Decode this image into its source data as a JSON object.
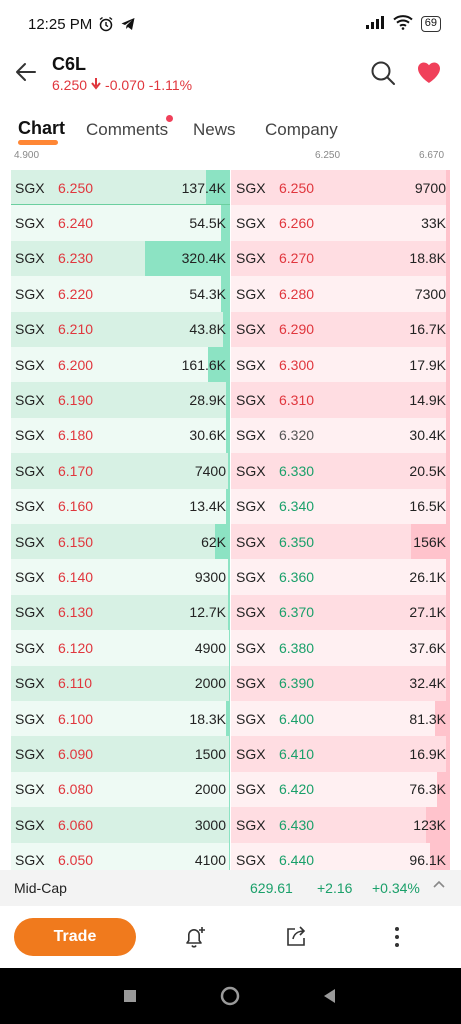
{
  "status": {
    "time": "12:25 PM",
    "battery": "69"
  },
  "header": {
    "ticker": "C6L",
    "price": "6.250",
    "change": "-0.070",
    "change_pct": "-1.11%"
  },
  "tabs": [
    {
      "label": "Chart",
      "active": true
    },
    {
      "label": "Comments",
      "badge": true
    },
    {
      "label": "News"
    },
    {
      "label": "Company"
    }
  ],
  "scale": {
    "low": "4.900",
    "mid": "6.250",
    "high": "6.670"
  },
  "order_book": {
    "bids": [
      {
        "ex": "SGX",
        "price": "6.250",
        "vol": "137.4K",
        "tone": "down",
        "fill": 0.11
      },
      {
        "ex": "SGX",
        "price": "6.240",
        "vol": "54.5K",
        "tone": "down",
        "fill": 0.04
      },
      {
        "ex": "SGX",
        "price": "6.230",
        "vol": "320.4K",
        "tone": "down",
        "fill": 0.39
      },
      {
        "ex": "SGX",
        "price": "6.220",
        "vol": "54.3K",
        "tone": "down",
        "fill": 0.04
      },
      {
        "ex": "SGX",
        "price": "6.210",
        "vol": "43.8K",
        "tone": "down",
        "fill": 0.03
      },
      {
        "ex": "SGX",
        "price": "6.200",
        "vol": "161.6K",
        "tone": "down",
        "fill": 0.1
      },
      {
        "ex": "SGX",
        "price": "6.190",
        "vol": "28.9K",
        "tone": "down",
        "fill": 0.02
      },
      {
        "ex": "SGX",
        "price": "6.180",
        "vol": "30.6K",
        "tone": "down",
        "fill": 0.02
      },
      {
        "ex": "SGX",
        "price": "6.170",
        "vol": "7400",
        "tone": "down",
        "fill": 0.01
      },
      {
        "ex": "SGX",
        "price": "6.160",
        "vol": "13.4K",
        "tone": "down",
        "fill": 0.02
      },
      {
        "ex": "SGX",
        "price": "6.150",
        "vol": "62K",
        "tone": "down",
        "fill": 0.07
      },
      {
        "ex": "SGX",
        "price": "6.140",
        "vol": "9300",
        "tone": "down",
        "fill": 0.01
      },
      {
        "ex": "SGX",
        "price": "6.130",
        "vol": "12.7K",
        "tone": "down",
        "fill": 0.01
      },
      {
        "ex": "SGX",
        "price": "6.120",
        "vol": "4900",
        "tone": "down",
        "fill": 0.005
      },
      {
        "ex": "SGX",
        "price": "6.110",
        "vol": "2000",
        "tone": "down",
        "fill": 0.005
      },
      {
        "ex": "SGX",
        "price": "6.100",
        "vol": "18.3K",
        "tone": "down",
        "fill": 0.02
      },
      {
        "ex": "SGX",
        "price": "6.090",
        "vol": "1500",
        "tone": "down",
        "fill": 0.005
      },
      {
        "ex": "SGX",
        "price": "6.080",
        "vol": "2000",
        "tone": "down",
        "fill": 0.005
      },
      {
        "ex": "SGX",
        "price": "6.060",
        "vol": "3000",
        "tone": "down",
        "fill": 0.005
      },
      {
        "ex": "SGX",
        "price": "6.050",
        "vol": "4100",
        "tone": "down",
        "fill": 0.005
      }
    ],
    "asks": [
      {
        "ex": "SGX",
        "price": "6.250",
        "vol": "9700",
        "tone": "down",
        "fill": 0.02
      },
      {
        "ex": "SGX",
        "price": "6.260",
        "vol": "33K",
        "tone": "down",
        "fill": 0.02
      },
      {
        "ex": "SGX",
        "price": "6.270",
        "vol": "18.8K",
        "tone": "down",
        "fill": 0.02
      },
      {
        "ex": "SGX",
        "price": "6.280",
        "vol": "7300",
        "tone": "down",
        "fill": 0.02
      },
      {
        "ex": "SGX",
        "price": "6.290",
        "vol": "16.7K",
        "tone": "down",
        "fill": 0.02
      },
      {
        "ex": "SGX",
        "price": "6.300",
        "vol": "17.9K",
        "tone": "down",
        "fill": 0.02
      },
      {
        "ex": "SGX",
        "price": "6.310",
        "vol": "14.9K",
        "tone": "down",
        "fill": 0.02
      },
      {
        "ex": "SGX",
        "price": "6.320",
        "vol": "30.4K",
        "tone": "flat",
        "fill": 0.02
      },
      {
        "ex": "SGX",
        "price": "6.330",
        "vol": "20.5K",
        "tone": "up",
        "fill": 0.02
      },
      {
        "ex": "SGX",
        "price": "6.340",
        "vol": "16.5K",
        "tone": "up",
        "fill": 0.02
      },
      {
        "ex": "SGX",
        "price": "6.350",
        "vol": "156K",
        "tone": "up",
        "fill": 0.18
      },
      {
        "ex": "SGX",
        "price": "6.360",
        "vol": "26.1K",
        "tone": "up",
        "fill": 0.02
      },
      {
        "ex": "SGX",
        "price": "6.370",
        "vol": "27.1K",
        "tone": "up",
        "fill": 0.02
      },
      {
        "ex": "SGX",
        "price": "6.380",
        "vol": "37.6K",
        "tone": "up",
        "fill": 0.02
      },
      {
        "ex": "SGX",
        "price": "6.390",
        "vol": "32.4K",
        "tone": "up",
        "fill": 0.02
      },
      {
        "ex": "SGX",
        "price": "6.400",
        "vol": "81.3K",
        "tone": "up",
        "fill": 0.07
      },
      {
        "ex": "SGX",
        "price": "6.410",
        "vol": "16.9K",
        "tone": "up",
        "fill": 0.02
      },
      {
        "ex": "SGX",
        "price": "6.420",
        "vol": "76.3K",
        "tone": "up",
        "fill": 0.06
      },
      {
        "ex": "SGX",
        "price": "6.430",
        "vol": "123K",
        "tone": "up",
        "fill": 0.11
      },
      {
        "ex": "SGX",
        "price": "6.440",
        "vol": "96.1K",
        "tone": "up",
        "fill": 0.09
      }
    ]
  },
  "midcap": {
    "label": "Mid-Cap",
    "value": "629.61",
    "change": "+2.16",
    "change_pct": "+0.34%"
  },
  "bottom": {
    "trade_label": "Trade"
  },
  "colors": {
    "bid_bar": "#8ce3c3",
    "ask_bar": "#ffc3cc",
    "accent": "#f07a1d",
    "down": "#e0363d",
    "up": "#1aa06a"
  }
}
